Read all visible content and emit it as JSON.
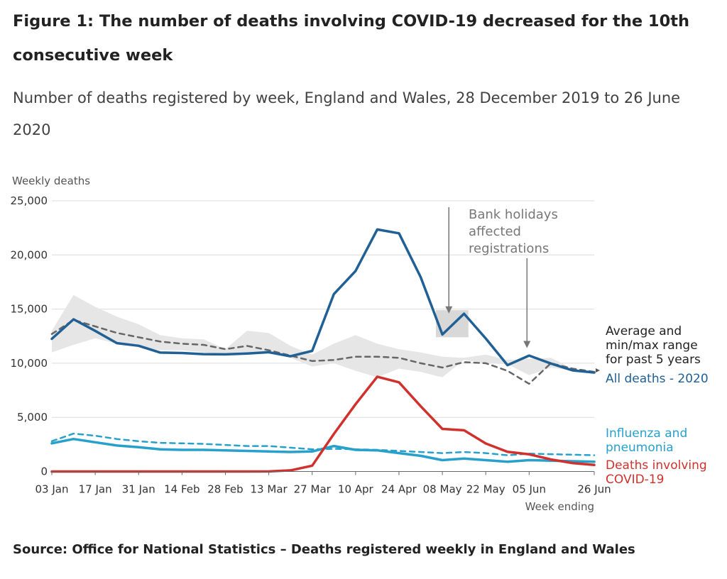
{
  "header": {
    "title": "Figure 1: The number of deaths involving COVID-19 decreased for the 10th consecutive week",
    "subtitle": "Number of deaths registered by week, England and Wales, 28 December 2019 to 26 June 2020"
  },
  "footer": {
    "source": "Source: Office for National Statistics – Deaths registered weekly in England and Wales"
  },
  "chart_data": {
    "type": "line",
    "ylabel": "Weekly deaths",
    "xlabel": "Week ending",
    "ylim": [
      0,
      25000
    ],
    "yticks": [
      0,
      5000,
      10000,
      15000,
      20000,
      25000
    ],
    "ytick_labels": [
      "0",
      "5,000",
      "10,000",
      "15,000",
      "20,000",
      "25,000"
    ],
    "grid": true,
    "categories": [
      "03 Jan",
      "10 Jan",
      "17 Jan",
      "24 Jan",
      "31 Jan",
      "07 Feb",
      "14 Feb",
      "21 Feb",
      "28 Feb",
      "06 Mar",
      "13 Mar",
      "20 Mar",
      "27 Mar",
      "03 Apr",
      "10 Apr",
      "17 Apr",
      "24 Apr",
      "01 May",
      "08 May",
      "15 May",
      "22 May",
      "29 May",
      "05 Jun",
      "12 Jun",
      "19 Jun",
      "26 Jun"
    ],
    "xtick_labels": [
      "03 Jan",
      "17 Jan",
      "31 Jan",
      "14 Feb",
      "28 Feb",
      "13 Mar",
      "27 Mar",
      "10 Apr",
      "24 Apr",
      "08 May",
      "22 May",
      "05 Jun",
      "26 Jun"
    ],
    "xtick_indices": [
      0,
      2,
      4,
      6,
      8,
      10,
      12,
      14,
      16,
      18,
      20,
      22,
      25
    ],
    "range_band": {
      "min": [
        11000,
        11700,
        12300,
        11800,
        11500,
        11200,
        11200,
        11000,
        10800,
        10900,
        11000,
        10500,
        9700,
        10000,
        9300,
        8700,
        9500,
        9200,
        8700,
        10300,
        10000,
        9900,
        8900,
        9600,
        9300,
        9000
      ],
      "max": [
        13000,
        16300,
        15200,
        14300,
        13600,
        12600,
        12300,
        12200,
        11300,
        13000,
        12800,
        11600,
        10800,
        11800,
        12600,
        11800,
        11300,
        11000,
        10600,
        10500,
        10800,
        10300,
        10400,
        10500,
        9500,
        9200
      ]
    },
    "bank_holiday_box": {
      "x": [
        17.7,
        19.2
      ],
      "y": [
        12400,
        14900
      ]
    },
    "series": [
      {
        "name": "Average and min/max range for past 5 years",
        "style": "dashed",
        "color": "#666666",
        "values": [
          12700,
          14000,
          13400,
          12800,
          12400,
          12000,
          11800,
          11700,
          11300,
          11600,
          11200,
          10700,
          10200,
          10300,
          10600,
          10600,
          10500,
          10000,
          9600,
          10100,
          10000,
          9300,
          8100,
          10000,
          9500,
          9200
        ]
      },
      {
        "name": "All deaths - 2020",
        "style": "solid",
        "color": "#206095",
        "values": [
          12254,
          14058,
          12990,
          11856,
          11612,
          10986,
          10944,
          10841,
          10816,
          10895,
          11019,
          10645,
          11141,
          16387,
          18516,
          22351,
          21997,
          17953,
          12657,
          14573,
          12288,
          9824,
          10709,
          9976,
          9339,
          9140
        ]
      },
      {
        "name": "Influenza and pneumonia",
        "style": "solid",
        "color": "#27a0cc",
        "values": [
          2600,
          3000,
          2700,
          2400,
          2250,
          2050,
          2000,
          2000,
          1950,
          1900,
          1850,
          1800,
          1850,
          2350,
          2000,
          1950,
          1700,
          1450,
          1050,
          1200,
          1050,
          900,
          1050,
          1000,
          950,
          900
        ]
      },
      {
        "name": "Influenza and pneumonia five year average",
        "style": "dashed",
        "color": "#27a0cc",
        "values": [
          2800,
          3500,
          3300,
          3000,
          2800,
          2650,
          2600,
          2550,
          2450,
          2350,
          2350,
          2200,
          2050,
          2100,
          2050,
          2000,
          1900,
          1800,
          1700,
          1800,
          1700,
          1500,
          1650,
          1600,
          1550,
          1500
        ]
      },
      {
        "name": "Deaths involving COVID-19",
        "style": "solid",
        "color": "#d0312d",
        "values": [
          0,
          0,
          0,
          0,
          0,
          0,
          0,
          0,
          0,
          0,
          5,
          103,
          539,
          3475,
          6213,
          8758,
          8237,
          6035,
          3930,
          3810,
          2589,
          1822,
          1588,
          1114,
          783,
          606
        ]
      }
    ],
    "annotations": [
      {
        "text": [
          "Bank holidays",
          "affected",
          "registrations"
        ],
        "arrow_targets": [
          {
            "x": 18.3,
            "y": 14600
          },
          {
            "x": 21.9,
            "y": 11400
          }
        ]
      }
    ],
    "series_labels": {
      "average": [
        "Average and",
        "min/max range",
        "for past 5 years"
      ],
      "all_deaths": [
        "All deaths - 2020"
      ],
      "influenza": [
        "Influenza and",
        "pneumonia"
      ],
      "covid": [
        "Deaths involving",
        "COVID-19"
      ]
    }
  }
}
